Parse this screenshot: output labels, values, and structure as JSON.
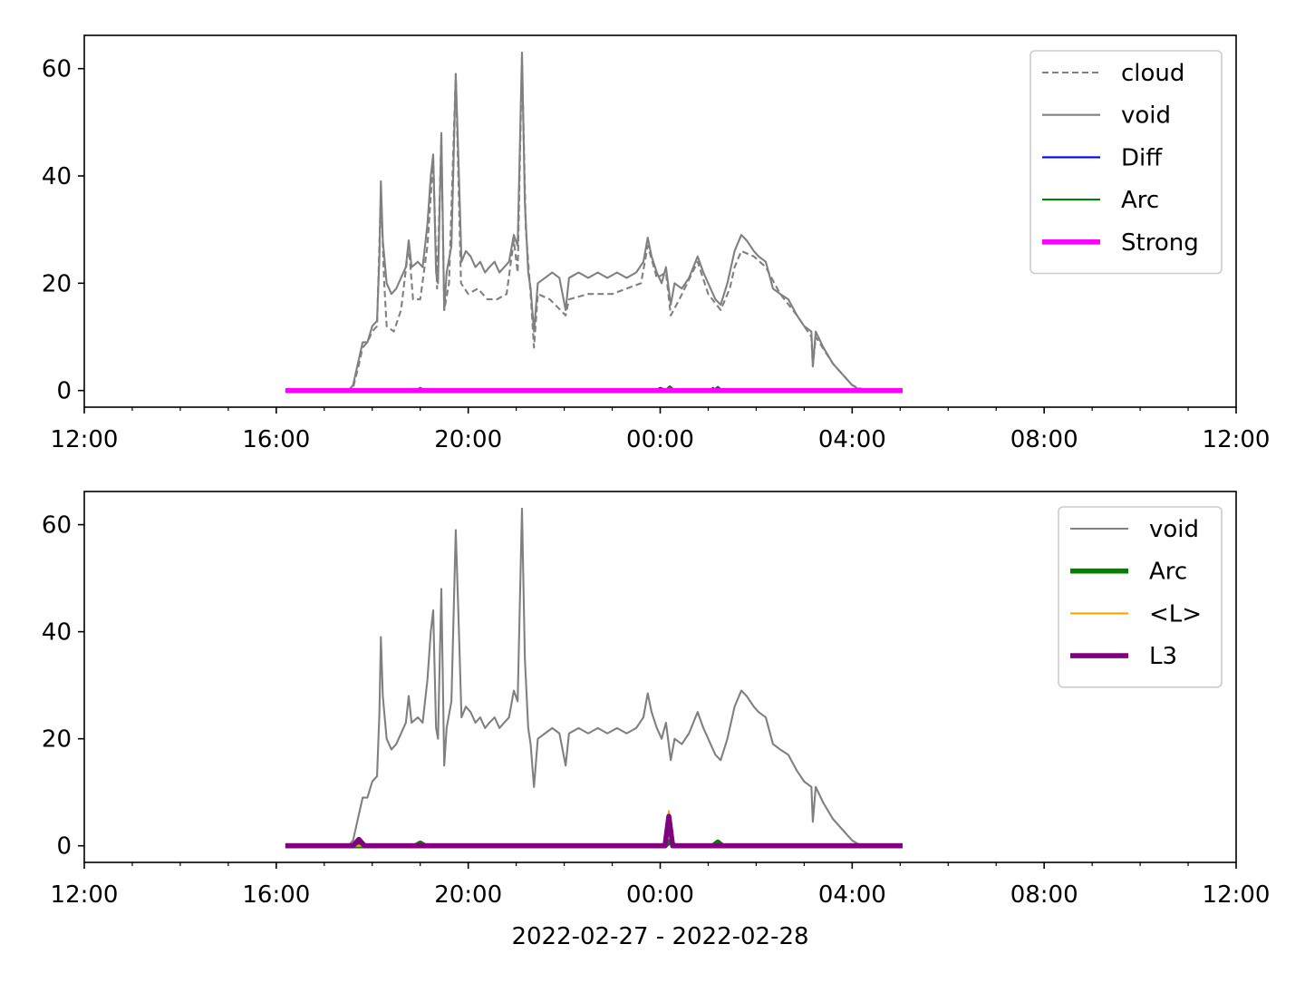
{
  "chart_data": [
    {
      "type": "line",
      "xlim": [
        0,
        24
      ],
      "xticks": [
        {
          "value": 0,
          "label": "12:00"
        },
        {
          "value": 4,
          "label": "16:00"
        },
        {
          "value": 8,
          "label": "20:00"
        },
        {
          "value": 12,
          "label": "00:00"
        },
        {
          "value": 16,
          "label": "04:00"
        },
        {
          "value": 20,
          "label": "08:00"
        },
        {
          "value": 24,
          "label": "12:00"
        }
      ],
      "xminorticks": [
        1,
        2,
        3,
        5,
        6,
        7,
        9,
        10,
        11,
        13,
        14,
        15,
        17,
        18,
        19,
        21,
        22,
        23
      ],
      "ylim": [
        -3.1,
        66.2
      ],
      "yticks": [
        0,
        20,
        40,
        60
      ],
      "legend": "upper right",
      "series": [
        {
          "name": "cloud",
          "color": "#808080",
          "linestyle": "dashed",
          "linewidth": 1.5,
          "x": [
            4.19,
            5.5,
            5.6,
            5.7,
            5.8,
            5.9,
            6.0,
            6.1,
            6.18,
            6.25,
            6.3,
            6.45,
            6.6,
            6.76,
            6.85,
            7.0,
            7.15,
            7.27,
            7.35,
            7.44,
            7.5,
            7.6,
            7.74,
            7.85,
            8.0,
            8.2,
            8.4,
            8.6,
            8.8,
            8.95,
            9.03,
            9.12,
            9.2,
            9.3,
            9.37,
            9.45,
            9.7,
            10.03,
            10.1,
            10.5,
            11.0,
            11.3,
            11.6,
            11.74,
            11.93,
            12.12,
            12.22,
            12.4,
            12.78,
            13.0,
            13.26,
            13.45,
            13.55,
            13.69,
            13.95,
            14.2,
            14.5,
            14.85,
            15.15,
            15.18,
            15.24,
            15.6,
            16.0,
            16.28,
            17.05
          ],
          "values": [
            0,
            0,
            0.5,
            4,
            8,
            9,
            11,
            12,
            37,
            20,
            12,
            11,
            15,
            27,
            17,
            17,
            27,
            43,
            19,
            47,
            15,
            20,
            59,
            20,
            18,
            19,
            17,
            17,
            18,
            28,
            22,
            62,
            30,
            18,
            8,
            18,
            17,
            14,
            17,
            18,
            18,
            19,
            20,
            27,
            21,
            22,
            14,
            17,
            24,
            18,
            15,
            19,
            23,
            26,
            25,
            23,
            18,
            14,
            10,
            4.5,
            10,
            5,
            1,
            0,
            0
          ]
        },
        {
          "name": "void",
          "color": "#808080",
          "linewidth": 1.5,
          "x": [
            4.19,
            5.5,
            5.6,
            5.7,
            5.8,
            5.9,
            6.0,
            6.1,
            6.15,
            6.18,
            6.22,
            6.3,
            6.4,
            6.5,
            6.6,
            6.7,
            6.76,
            6.82,
            6.95,
            7.05,
            7.15,
            7.22,
            7.27,
            7.33,
            7.37,
            7.44,
            7.5,
            7.55,
            7.65,
            7.74,
            7.8,
            7.86,
            7.95,
            8.05,
            8.15,
            8.25,
            8.35,
            8.44,
            8.55,
            8.65,
            8.75,
            8.85,
            8.95,
            9.03,
            9.12,
            9.18,
            9.25,
            9.3,
            9.37,
            9.45,
            9.6,
            9.75,
            9.9,
            10.03,
            10.1,
            10.3,
            10.5,
            10.7,
            10.9,
            11.1,
            11.3,
            11.5,
            11.65,
            11.74,
            11.82,
            11.93,
            12.03,
            12.12,
            12.22,
            12.3,
            12.45,
            12.6,
            12.78,
            12.9,
            13.05,
            13.15,
            13.26,
            13.4,
            13.55,
            13.69,
            13.8,
            13.95,
            14.05,
            14.2,
            14.35,
            14.5,
            14.67,
            14.85,
            15.0,
            15.15,
            15.18,
            15.24,
            15.4,
            15.6,
            15.8,
            16.0,
            16.15,
            16.28,
            17.05
          ],
          "values": [
            0,
            0,
            1,
            5,
            9,
            9,
            12,
            13,
            25,
            39,
            28,
            20,
            18,
            19,
            21,
            23,
            28,
            23,
            24,
            23,
            31,
            40,
            44,
            22,
            20,
            48,
            15,
            22,
            27,
            59,
            42,
            24,
            26,
            25,
            23,
            24,
            22,
            23,
            24,
            22,
            23,
            24,
            29,
            27,
            63,
            35,
            22,
            19,
            11,
            20,
            21,
            22,
            21,
            15,
            21,
            22,
            21,
            22,
            21,
            22,
            21,
            22,
            24,
            28.5,
            25,
            22,
            20,
            23,
            16,
            20,
            19,
            21,
            25,
            22,
            19,
            17,
            16,
            20,
            26,
            29,
            28,
            26,
            25,
            24,
            19,
            18,
            17,
            14,
            12,
            11,
            4.5,
            11,
            8,
            5,
            3,
            1,
            0.2,
            0,
            0
          ]
        },
        {
          "name": "Diff",
          "color": "#0000ff",
          "linewidth": 1.5,
          "x": [
            4.19,
            11.9,
            12.0,
            12.1,
            12.2,
            13.05,
            13.1,
            13.15,
            17.05
          ],
          "values": [
            0,
            0,
            0.5,
            0.2,
            0,
            0,
            0.5,
            0,
            0
          ]
        },
        {
          "name": "Arc",
          "color": "#008000",
          "linewidth": 1.5,
          "x": [
            4.19,
            6.9,
            7.0,
            7.1,
            12.1,
            12.2,
            12.3,
            13.1,
            13.2,
            13.3,
            17.05
          ],
          "values": [
            0,
            0,
            0.5,
            0,
            0,
            0.8,
            0,
            0,
            0.7,
            0,
            0
          ]
        },
        {
          "name": "Strong",
          "color": "#ff00ff",
          "linewidth": 4,
          "x": [
            4.19,
            17.05
          ],
          "values": [
            0,
            0
          ]
        }
      ]
    },
    {
      "type": "line",
      "xlabel": "2022-02-27 - 2022-02-28",
      "xlim": [
        0,
        24
      ],
      "xticks": [
        {
          "value": 0,
          "label": "12:00"
        },
        {
          "value": 4,
          "label": "16:00"
        },
        {
          "value": 8,
          "label": "20:00"
        },
        {
          "value": 12,
          "label": "00:00"
        },
        {
          "value": 16,
          "label": "04:00"
        },
        {
          "value": 20,
          "label": "08:00"
        },
        {
          "value": 24,
          "label": "12:00"
        }
      ],
      "xminorticks": [
        1,
        2,
        3,
        5,
        6,
        7,
        9,
        10,
        11,
        13,
        14,
        15,
        17,
        18,
        19,
        21,
        22,
        23
      ],
      "ylim": [
        -3.1,
        66.2
      ],
      "yticks": [
        0,
        20,
        40,
        60
      ],
      "legend": "upper right",
      "series": [
        {
          "name": "void",
          "color": "#808080",
          "linewidth": 1.5,
          "x": [
            4.19,
            5.5,
            5.6,
            5.7,
            5.8,
            5.9,
            6.0,
            6.1,
            6.15,
            6.18,
            6.22,
            6.3,
            6.4,
            6.5,
            6.6,
            6.7,
            6.76,
            6.82,
            6.95,
            7.05,
            7.15,
            7.22,
            7.27,
            7.33,
            7.37,
            7.44,
            7.5,
            7.55,
            7.65,
            7.74,
            7.8,
            7.86,
            7.95,
            8.05,
            8.15,
            8.25,
            8.35,
            8.44,
            8.55,
            8.65,
            8.75,
            8.85,
            8.95,
            9.03,
            9.12,
            9.18,
            9.25,
            9.3,
            9.37,
            9.45,
            9.6,
            9.75,
            9.9,
            10.03,
            10.1,
            10.3,
            10.5,
            10.7,
            10.9,
            11.1,
            11.3,
            11.5,
            11.65,
            11.74,
            11.82,
            11.93,
            12.03,
            12.12,
            12.22,
            12.3,
            12.45,
            12.6,
            12.78,
            12.9,
            13.05,
            13.15,
            13.26,
            13.4,
            13.55,
            13.69,
            13.8,
            13.95,
            14.05,
            14.2,
            14.35,
            14.5,
            14.67,
            14.85,
            15.0,
            15.15,
            15.18,
            15.24,
            15.4,
            15.6,
            15.8,
            16.0,
            16.15,
            16.28,
            17.05
          ],
          "values": [
            0,
            0,
            1,
            5,
            9,
            9,
            12,
            13,
            25,
            39,
            28,
            20,
            18,
            19,
            21,
            23,
            28,
            23,
            24,
            23,
            31,
            40,
            44,
            22,
            20,
            48,
            15,
            22,
            27,
            59,
            42,
            24,
            26,
            25,
            23,
            24,
            22,
            23,
            24,
            22,
            23,
            24,
            29,
            27,
            63,
            35,
            22,
            19,
            11,
            20,
            21,
            22,
            21,
            15,
            21,
            22,
            21,
            22,
            21,
            22,
            21,
            22,
            24,
            28.5,
            25,
            22,
            20,
            23,
            16,
            20,
            19,
            21,
            25,
            22,
            19,
            17,
            16,
            20,
            26,
            29,
            28,
            26,
            25,
            24,
            19,
            18,
            17,
            14,
            12,
            11,
            4.5,
            11,
            8,
            5,
            3,
            1,
            0.2,
            0,
            0
          ]
        },
        {
          "name": "Arc",
          "color": "#008000",
          "linewidth": 4,
          "x": [
            4.19,
            6.9,
            7.0,
            7.1,
            12.1,
            12.2,
            12.3,
            13.1,
            13.2,
            13.3,
            17.05
          ],
          "values": [
            0,
            0,
            0.5,
            0,
            0,
            0.8,
            0,
            0,
            0.7,
            0,
            0
          ]
        },
        {
          "name": "<L>",
          "color": "#ffa500",
          "linewidth": 1.5,
          "x": [
            4.19,
            12.1,
            12.18,
            12.26,
            17.05
          ],
          "values": [
            0,
            0,
            6.5,
            0,
            0
          ]
        },
        {
          "name": "L3",
          "color": "#800080",
          "linewidth": 4,
          "x": [
            4.19,
            5.6,
            5.72,
            5.84,
            12.1,
            12.18,
            12.26,
            17.05
          ],
          "values": [
            0,
            0,
            1.2,
            0,
            0,
            5.5,
            0,
            0
          ]
        }
      ]
    }
  ]
}
